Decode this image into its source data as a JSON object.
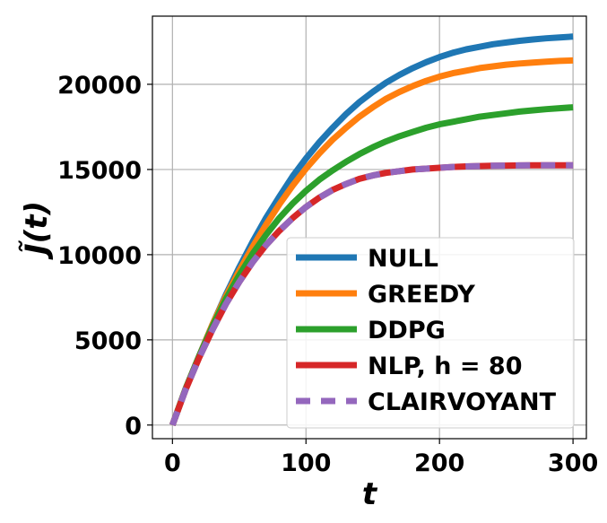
{
  "chart_data": {
    "type": "line",
    "title": "",
    "xlabel": "t",
    "ylabel": "J̃(t)",
    "xlim": [
      -15,
      310
    ],
    "ylim": [
      -800,
      24000
    ],
    "x_ticks": [
      0,
      100,
      200,
      300
    ],
    "x_tick_labels": [
      "0",
      "100",
      "200",
      "300"
    ],
    "y_ticks": [
      0,
      5000,
      10000,
      15000,
      20000
    ],
    "y_tick_labels": [
      "0",
      "5000",
      "10000",
      "15000",
      "20000"
    ],
    "grid": true,
    "legend_position": "lower-right",
    "x": [
      0,
      10,
      20,
      30,
      40,
      50,
      60,
      70,
      80,
      90,
      100,
      110,
      120,
      130,
      140,
      150,
      160,
      170,
      180,
      190,
      200,
      210,
      220,
      230,
      240,
      250,
      260,
      270,
      280,
      290,
      300
    ],
    "series": [
      {
        "name": "NULL",
        "color": "#1f77b4",
        "style": "solid",
        "values": [
          0,
          2150,
          4050,
          5900,
          7650,
          9250,
          10750,
          12150,
          13400,
          14600,
          15650,
          16600,
          17450,
          18250,
          18950,
          19550,
          20100,
          20550,
          20950,
          21300,
          21600,
          21850,
          22050,
          22200,
          22350,
          22450,
          22550,
          22630,
          22700,
          22750,
          22800
        ]
      },
      {
        "name": "GREEDY",
        "color": "#ff7f0e",
        "style": "solid",
        "values": [
          0,
          2150,
          4050,
          5900,
          7550,
          9050,
          10450,
          11750,
          12950,
          14050,
          15050,
          15950,
          16750,
          17450,
          18100,
          18650,
          19150,
          19550,
          19900,
          20200,
          20450,
          20650,
          20800,
          20950,
          21050,
          21150,
          21220,
          21280,
          21330,
          21370,
          21400
        ]
      },
      {
        "name": "DDPG",
        "color": "#2ca02c",
        "style": "solid",
        "values": [
          0,
          2150,
          4050,
          5800,
          7400,
          8800,
          10050,
          11150,
          12150,
          13000,
          13750,
          14400,
          14950,
          15450,
          15900,
          16300,
          16650,
          16950,
          17200,
          17450,
          17650,
          17800,
          17950,
          18100,
          18200,
          18300,
          18400,
          18470,
          18540,
          18600,
          18650
        ]
      },
      {
        "name": "NLP, h = 80",
        "color": "#d62728",
        "style": "solid",
        "values": [
          0,
          2100,
          3950,
          5600,
          7100,
          8400,
          9550,
          10550,
          11400,
          12150,
          12800,
          13350,
          13800,
          14150,
          14450,
          14650,
          14800,
          14900,
          15000,
          15050,
          15100,
          15150,
          15180,
          15200,
          15220,
          15230,
          15240,
          15250,
          15250,
          15250,
          15250
        ]
      },
      {
        "name": "CLAIRVOYANT",
        "color": "#9467bd",
        "style": "dashed",
        "values": [
          0,
          2100,
          3950,
          5600,
          7100,
          8400,
          9550,
          10550,
          11400,
          12150,
          12800,
          13350,
          13800,
          14150,
          14450,
          14650,
          14800,
          14900,
          15000,
          15050,
          15100,
          15150,
          15180,
          15200,
          15220,
          15230,
          15240,
          15250,
          15250,
          15250,
          15250
        ]
      }
    ]
  }
}
